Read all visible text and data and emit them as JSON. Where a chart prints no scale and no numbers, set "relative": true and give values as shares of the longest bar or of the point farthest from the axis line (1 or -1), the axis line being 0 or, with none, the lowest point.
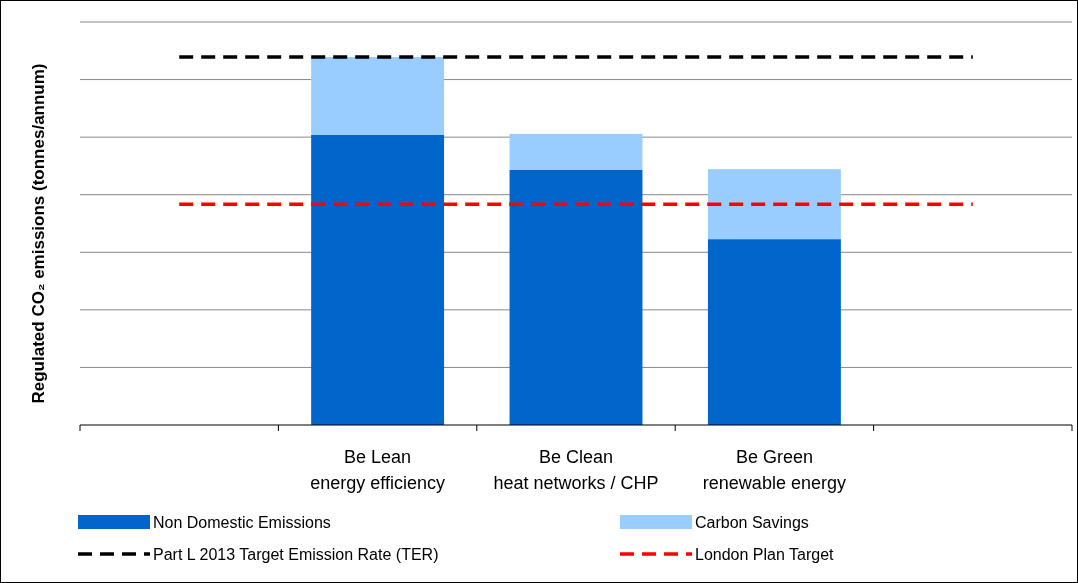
{
  "chart_data": {
    "type": "bar",
    "stacked": true,
    "relative": true,
    "ylabel": "Regulated CO₂ emissions (tonnes/annum)",
    "categories": [
      null,
      "Be Lean\nenergy efficiency",
      "Be Clean\nheat networks / CHP",
      "Be Green\nrenewable energy",
      null
    ],
    "series": [
      {
        "name": "Non Domestic Emissions",
        "color": "#0066cc",
        "values": [
          null,
          0.788,
          0.693,
          0.505,
          null
        ]
      },
      {
        "name": "Carbon Savings",
        "color": "#99ccff",
        "values": [
          null,
          0.212,
          0.098,
          0.19,
          null
        ]
      }
    ],
    "ref_lines": [
      {
        "axis": "y",
        "value": 1.0,
        "label": "Part L 2013 Target Emission Rate (TER)",
        "color": "#000000",
        "line_style": "dashed"
      },
      {
        "axis": "y",
        "value": 0.6,
        "label": "London Plan Target",
        "color": "#ff0000",
        "line_style": "dashed"
      }
    ],
    "grid": "y",
    "legend": "bottom"
  }
}
